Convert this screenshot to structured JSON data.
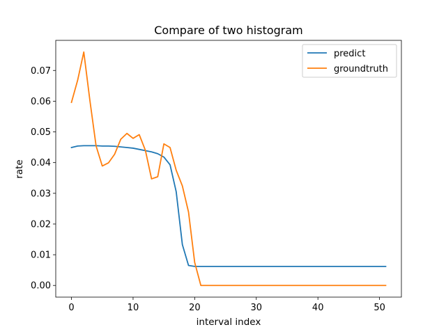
{
  "chart_data": {
    "type": "line",
    "title": "Compare of two histogram",
    "xlabel": "interval index",
    "ylabel": "rate",
    "xlim": [
      -2.55,
      53.55
    ],
    "ylim": [
      -0.0038,
      0.0798
    ],
    "x_ticks": [
      0,
      10,
      20,
      30,
      40,
      50
    ],
    "x_tick_labels": [
      "0",
      "10",
      "20",
      "30",
      "40",
      "50"
    ],
    "y_ticks": [
      0.0,
      0.01,
      0.02,
      0.03,
      0.04,
      0.05,
      0.06,
      0.07
    ],
    "y_tick_labels": [
      "0.00",
      "0.01",
      "0.02",
      "0.03",
      "0.04",
      "0.05",
      "0.06",
      "0.07"
    ],
    "grid": false,
    "legend_position": "upper right",
    "x": [
      0,
      1,
      2,
      3,
      4,
      5,
      6,
      7,
      8,
      9,
      10,
      11,
      12,
      13,
      14,
      15,
      16,
      17,
      18,
      19,
      20,
      21,
      22,
      23,
      24,
      25,
      26,
      27,
      28,
      29,
      30,
      31,
      32,
      33,
      34,
      35,
      36,
      37,
      38,
      39,
      40,
      41,
      42,
      43,
      44,
      45,
      46,
      47,
      48,
      49,
      50,
      51
    ],
    "series": [
      {
        "name": "predict",
        "color": "#1f77b4",
        "values": [
          0.0449,
          0.0454,
          0.0455,
          0.0455,
          0.0455,
          0.0454,
          0.0454,
          0.0453,
          0.0451,
          0.0449,
          0.0447,
          0.0443,
          0.0439,
          0.0435,
          0.0429,
          0.0418,
          0.0393,
          0.0305,
          0.0133,
          0.0065,
          0.0062,
          0.0062,
          0.0062,
          0.0062,
          0.0062,
          0.0062,
          0.0062,
          0.0062,
          0.0062,
          0.0062,
          0.0062,
          0.0062,
          0.0062,
          0.0062,
          0.0062,
          0.0062,
          0.0062,
          0.0062,
          0.0062,
          0.0062,
          0.0062,
          0.0062,
          0.0062,
          0.0062,
          0.0062,
          0.0062,
          0.0062,
          0.0062,
          0.0062,
          0.0062,
          0.0062,
          0.0062
        ]
      },
      {
        "name": "groundtruth",
        "color": "#ff7f0e",
        "values": [
          0.0596,
          0.0668,
          0.076,
          0.0601,
          0.0454,
          0.0389,
          0.0399,
          0.0427,
          0.0476,
          0.0495,
          0.0479,
          0.0491,
          0.044,
          0.0347,
          0.0354,
          0.0461,
          0.0449,
          0.0375,
          0.0324,
          0.0239,
          0.0075,
          0.0,
          0.0,
          0.0,
          0.0,
          0.0,
          0.0,
          0.0,
          0.0,
          0.0,
          0.0,
          0.0,
          0.0,
          0.0,
          0.0,
          0.0,
          0.0,
          0.0,
          0.0,
          0.0,
          0.0,
          0.0,
          0.0,
          0.0,
          0.0,
          0.0,
          0.0,
          0.0,
          0.0,
          0.0,
          0.0,
          0.0
        ]
      }
    ]
  }
}
